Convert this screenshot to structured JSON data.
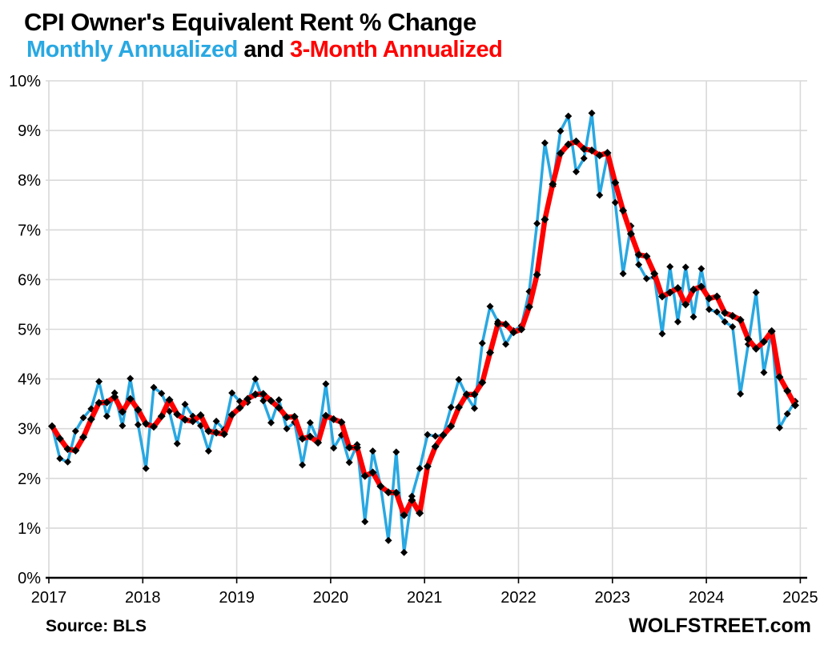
{
  "header": {
    "title": "CPI Owner's Equivalent Rent % Change",
    "legend_monthly": "Monthly Annualized",
    "legend_and": " and ",
    "legend_three_month": "3-Month Annualized"
  },
  "footer": {
    "source": "Source: BLS",
    "branding": "WOLFSTREET.com"
  },
  "colors": {
    "monthly_line": "#29A8E2",
    "three_month_line": "#FF0000",
    "marker": "#000000",
    "grid": "#D9D9D9",
    "axis": "#000000",
    "background": "#FFFFFF"
  },
  "chart_data": {
    "type": "line",
    "title": "CPI Owner's Equivalent Rent % Change",
    "subtitle_legend": "Monthly Annualized and 3-Month Annualized",
    "frequency": "monthly",
    "x_start": "2017-01",
    "x_end": "2024-12",
    "x_tick_labels": [
      "2017",
      "2018",
      "2019",
      "2020",
      "2021",
      "2022",
      "2023",
      "2024",
      "2025"
    ],
    "y_tick_labels": [
      "0%",
      "1%",
      "2%",
      "3%",
      "4%",
      "5%",
      "6%",
      "7%",
      "8%",
      "9%",
      "10%"
    ],
    "ylim": [
      0,
      10
    ],
    "grid": true,
    "legend_position": "in-title",
    "series": [
      {
        "name": "Monthly Annualized",
        "color": "#29A8E2",
        "values": [
          3.05,
          2.4,
          2.33,
          2.95,
          3.22,
          3.4,
          3.95,
          3.25,
          3.72,
          3.06,
          4.01,
          3.08,
          2.2,
          3.83,
          3.71,
          3.35,
          2.7,
          3.49,
          3.25,
          3.06,
          2.55,
          3.15,
          2.98,
          3.72,
          3.55,
          3.53,
          4.0,
          3.56,
          3.12,
          3.58,
          3.0,
          3.13,
          2.27,
          3.12,
          2.77,
          3.9,
          2.61,
          2.87,
          2.32,
          2.68,
          1.13,
          2.55,
          1.85,
          0.75,
          2.53,
          0.51,
          1.64,
          2.2,
          2.88,
          2.85,
          2.87,
          3.43,
          3.99,
          3.66,
          3.41,
          4.72,
          5.46,
          5.15,
          4.7,
          4.97,
          5.07,
          5.76,
          7.13,
          8.75,
          7.88,
          8.99,
          9.29,
          8.17,
          8.44,
          9.35,
          7.7,
          8.51,
          7.55,
          6.12,
          7.08,
          6.3,
          6.02,
          6.05,
          4.91,
          6.26,
          5.15,
          6.25,
          5.25,
          6.22,
          5.4,
          5.35,
          5.15,
          5.05,
          3.7,
          4.7,
          5.74,
          4.13,
          4.97,
          3.02,
          3.3,
          3.55
        ]
      },
      {
        "name": "3-Month Annualized",
        "color": "#FF0000",
        "values": [
          3.05,
          2.8,
          2.59,
          2.56,
          2.83,
          3.19,
          3.52,
          3.53,
          3.64,
          3.34,
          3.6,
          3.38,
          3.1,
          3.04,
          3.25,
          3.58,
          3.29,
          3.18,
          3.15,
          3.27,
          2.95,
          2.92,
          2.89,
          3.28,
          3.42,
          3.6,
          3.69,
          3.7,
          3.56,
          3.42,
          3.23,
          3.24,
          2.8,
          2.84,
          2.72,
          3.26,
          3.19,
          3.13,
          2.62,
          2.62,
          2.05,
          2.12,
          1.84,
          1.72,
          1.71,
          1.26,
          1.56,
          1.3,
          2.24,
          2.64,
          2.87,
          3.05,
          3.43,
          3.69,
          3.69,
          3.93,
          4.53,
          5.11,
          5.1,
          4.94,
          5.0,
          5.45,
          6.1,
          7.21,
          7.92,
          8.54,
          8.72,
          8.78,
          8.63,
          8.6,
          8.5,
          8.55,
          7.95,
          7.39,
          6.92,
          6.5,
          6.47,
          6.12,
          5.66,
          5.74,
          5.83,
          5.5,
          5.8,
          5.86,
          5.62,
          5.66,
          5.33,
          5.27,
          5.19,
          4.8,
          4.61,
          4.75,
          4.96,
          4.04,
          3.76,
          3.47
        ]
      }
    ]
  }
}
